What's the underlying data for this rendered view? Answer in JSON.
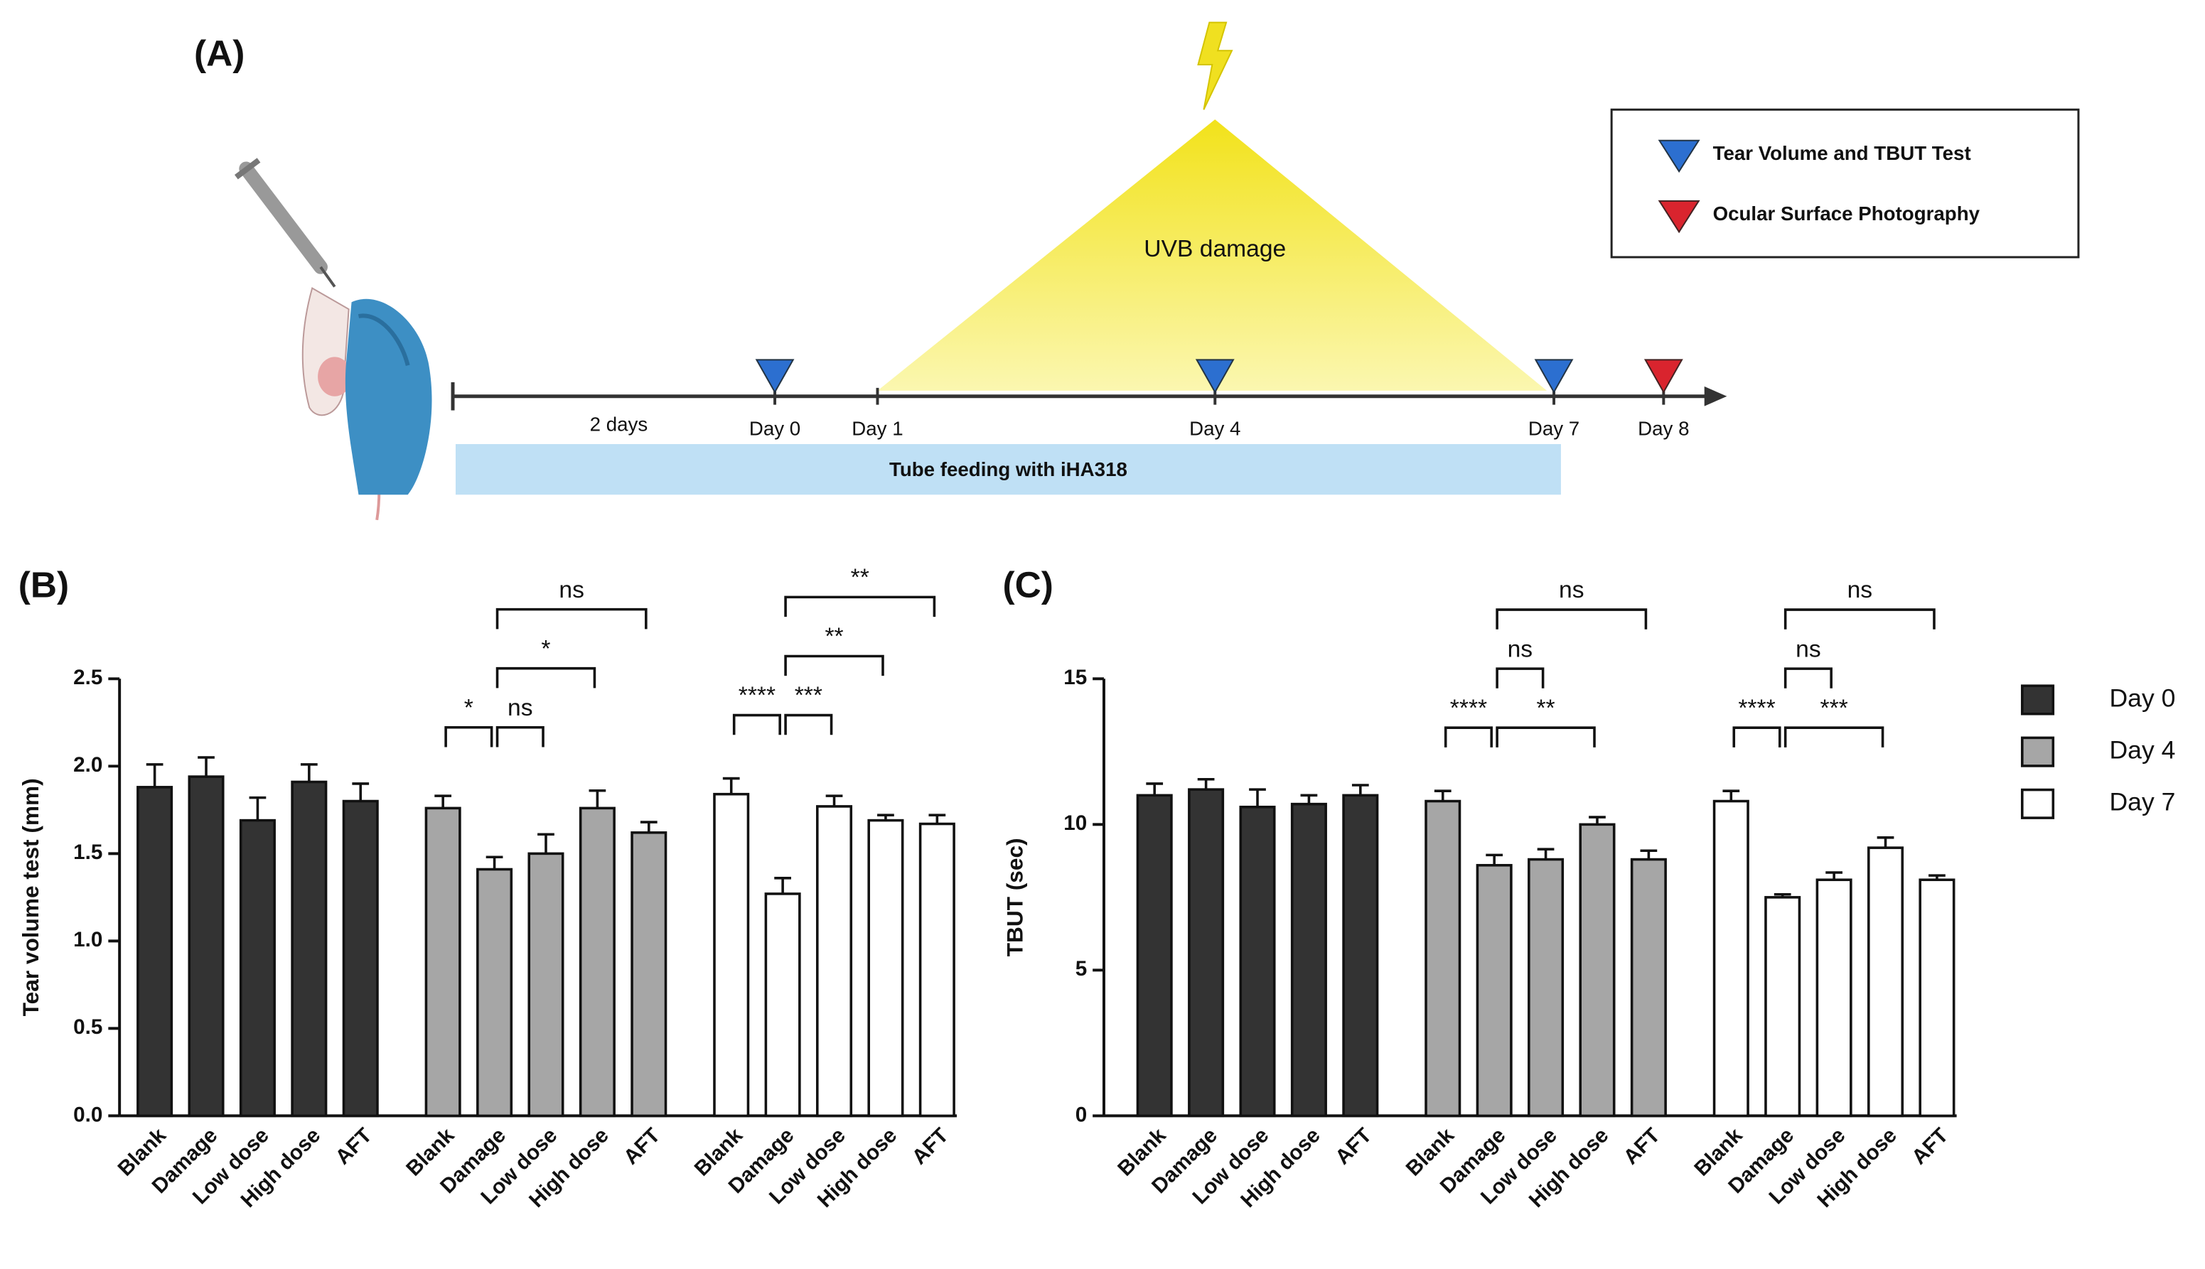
{
  "panel_a": {
    "label": "(A)",
    "legend": [
      {
        "label": "Tear Volume and TBUT Test"
      },
      {
        "label": "Ocular Surface Photography"
      }
    ],
    "uvb": "UVB damage",
    "duration": "2 days",
    "days": [
      "Day 0",
      "Day 1",
      "Day 4",
      "Day 7",
      "Day 8"
    ],
    "feeding": "Tube feeding with iHA318"
  },
  "chart_data": [
    {
      "type": "bar",
      "title": "(B)",
      "ylabel": "Tear volume test (mm)",
      "categories": [
        "Blank",
        "Damage",
        "Low dose",
        "High dose",
        "AFT"
      ],
      "series": [
        {
          "color": "#333333",
          "values": [
            1.88,
            1.94,
            1.69,
            1.91,
            1.8
          ],
          "errors": [
            0.13,
            0.11,
            0.13,
            0.1,
            0.1
          ]
        },
        {
          "color": "#a6a6a6",
          "values": [
            1.76,
            1.41,
            1.5,
            1.76,
            1.62
          ],
          "errors": [
            0.07,
            0.07,
            0.11,
            0.1,
            0.06
          ]
        },
        {
          "color": "#ffffff",
          "values": [
            1.84,
            1.27,
            1.77,
            1.69,
            1.67
          ],
          "errors": [
            0.09,
            0.09,
            0.06,
            0.03,
            0.05
          ]
        }
      ],
      "ylim": [
        0,
        2.5
      ],
      "yticks": [
        {
          "value": 0,
          "label": "0.0"
        },
        0.5,
        {
          "value": 1,
          "label": "1.0"
        },
        1.5,
        {
          "value": 2,
          "label": "2.0"
        },
        2.5
      ],
      "brackets": [
        {
          "series": 1,
          "from": 0,
          "to": 1,
          "label": "*"
        },
        {
          "series": 1,
          "from": 1,
          "to": 2,
          "label": "ns"
        },
        {
          "series": 1,
          "from": 1,
          "to": 3,
          "label": "*"
        },
        {
          "series": 1,
          "from": 1,
          "to": 4,
          "label": "ns"
        },
        {
          "series": 2,
          "from": 1,
          "to": 2,
          "label": "***"
        },
        {
          "series": 2,
          "from": 0,
          "to": 1,
          "label": "****"
        },
        {
          "series": 2,
          "from": 1,
          "to": 3,
          "label": "**"
        },
        {
          "series": 2,
          "from": 1,
          "to": 4,
          "label": "**"
        }
      ]
    },
    {
      "type": "bar",
      "title": "(C)",
      "ylabel": "TBUT (sec)",
      "categories": [
        "Blank",
        "Damage",
        "Low dose",
        "High dose",
        "AFT"
      ],
      "series": [
        {
          "name": "Day 0",
          "color": "#333333",
          "values": [
            11.0,
            11.2,
            10.6,
            10.7,
            11.0
          ],
          "errors": [
            0.4,
            0.35,
            0.6,
            0.3,
            0.35
          ]
        },
        {
          "name": "Day 4",
          "color": "#a6a6a6",
          "values": [
            10.8,
            8.6,
            8.8,
            10.0,
            8.8
          ],
          "errors": [
            0.35,
            0.35,
            0.35,
            0.25,
            0.3
          ]
        },
        {
          "name": "Day 7",
          "color": "#ffffff",
          "values": [
            10.8,
            7.5,
            8.1,
            9.2,
            8.1
          ],
          "errors": [
            0.35,
            0.1,
            0.25,
            0.35,
            0.15
          ]
        }
      ],
      "ylim": [
        0,
        15
      ],
      "yticks": [
        0,
        5,
        10,
        15
      ],
      "legend": "right",
      "brackets": [
        {
          "series": 1,
          "from": 0,
          "to": 1,
          "label": "****"
        },
        {
          "series": 1,
          "from": 1,
          "to": 3,
          "label": "**"
        },
        {
          "series": 1,
          "from": 1,
          "to": 2,
          "label": "ns"
        },
        {
          "series": 1,
          "from": 1,
          "to": 4,
          "label": "ns"
        },
        {
          "series": 2,
          "from": 0,
          "to": 1,
          "label": "****"
        },
        {
          "series": 2,
          "from": 1,
          "to": 3,
          "label": "***"
        },
        {
          "series": 2,
          "from": 1,
          "to": 2,
          "label": "ns"
        },
        {
          "series": 2,
          "from": 1,
          "to": 4,
          "label": "ns"
        }
      ]
    }
  ]
}
